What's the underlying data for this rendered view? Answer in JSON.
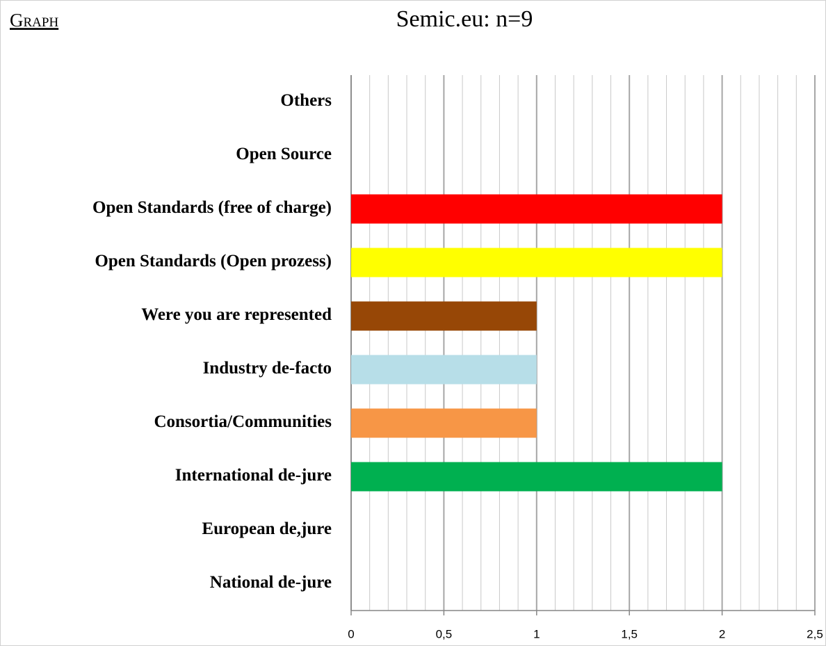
{
  "header": "Graph",
  "chart_data": {
    "type": "hbar",
    "title": "Semic.eu: n=9",
    "categories": [
      "Others",
      "Open Source",
      "Open Standards (free of charge)",
      "Open Standards (Open prozess)",
      "Were you are represented",
      "Industry de-facto",
      "Consortia/Communities",
      "International de-jure",
      "European de,jure",
      "National de-jure"
    ],
    "values": [
      0,
      0,
      2,
      2,
      1,
      1,
      1,
      2,
      0,
      0
    ],
    "colors": [
      null,
      null,
      "#ff0000",
      "#ffff00",
      "#974706",
      "#b7dee8",
      "#f79646",
      "#00b050",
      null,
      null
    ],
    "xlim": [
      0,
      2.5
    ],
    "xticks": [
      0,
      {
        "value": 0.5,
        "label": "0,5"
      },
      1,
      {
        "value": 1.5,
        "label": "1,5"
      },
      2,
      {
        "value": 2.5,
        "label": "2,5"
      }
    ],
    "grid": true,
    "minor_grid_divisions": 5
  }
}
